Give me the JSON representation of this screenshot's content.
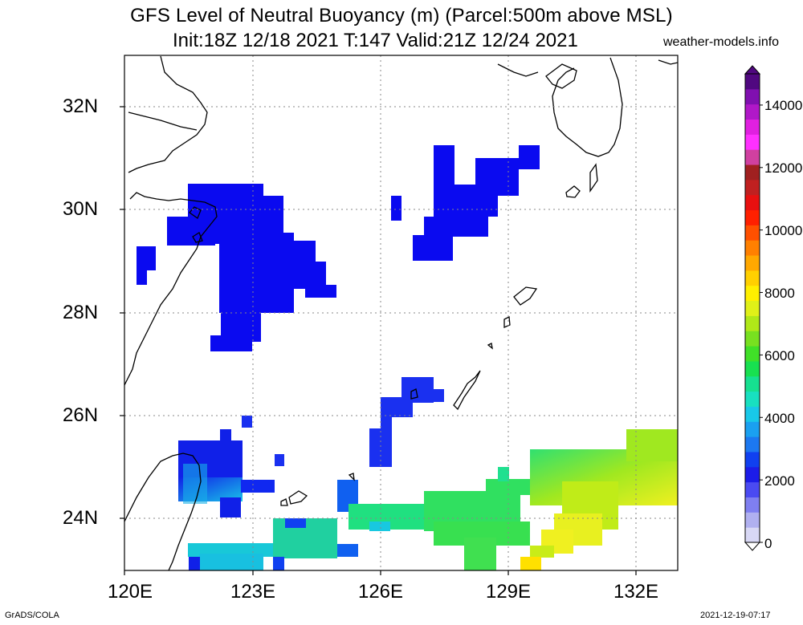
{
  "title_line1": "GFS Level of Neutral Buoyancy (m) (Parcel:500m above MSL)",
  "title_line2": "Init:18Z 12/18 2021 T:147 Valid:21Z 12/24 2021",
  "site": "weather-models.info",
  "lat_labels": [
    "32N",
    "30N",
    "28N",
    "26N",
    "24N"
  ],
  "lon_labels": [
    "120E",
    "123E",
    "126E",
    "129E",
    "132E"
  ],
  "colorbar": {
    "labels": [
      "14000",
      "12000",
      "10000",
      "8000",
      "6000",
      "4000",
      "2000",
      "0"
    ],
    "colors": [
      "#d8d8f5",
      "#b0b0f0",
      "#7f7ff0",
      "#4a4af2",
      "#1c1ce8",
      "#1040f0",
      "#1c78f0",
      "#1aa0f0",
      "#18c8e8",
      "#18e0c0",
      "#16e090",
      "#18e050",
      "#40e028",
      "#78e020",
      "#b0e818",
      "#e0f018",
      "#fff000",
      "#ffd000",
      "#ffa800",
      "#ff8000",
      "#ff5000",
      "#ff2000",
      "#e81010",
      "#c02020",
      "#a02020",
      "#d040a0",
      "#ff30ff",
      "#e020e0",
      "#b018c8",
      "#8010b0",
      "#500880"
    ]
  },
  "footer_left": "GrADS/COLA",
  "footer_right": "2021-12-19-07:17"
}
